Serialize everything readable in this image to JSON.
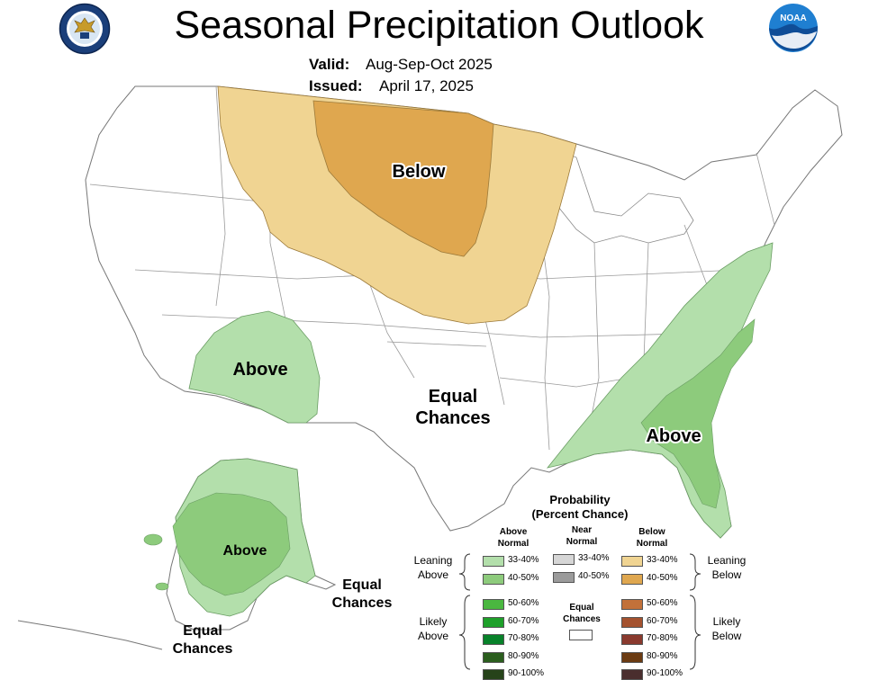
{
  "header": {
    "title": "Seasonal Precipitation Outlook",
    "valid_label": "Valid:",
    "valid_value": "Aug-Sep-Oct 2025",
    "issued_label": "Issued:",
    "issued_value": "April 17, 2025",
    "left_logo": "doc-seal-logo",
    "right_logo": "noaa-logo",
    "right_logo_text": "NOAA"
  },
  "map": {
    "regions": [
      {
        "id": "below-northern-plains",
        "label": "Below",
        "category": "below",
        "colors": [
          "#f0d492",
          "#dfa74f"
        ]
      },
      {
        "id": "above-southwest",
        "label": "Above",
        "category": "above",
        "color": "#b3dfab"
      },
      {
        "id": "above-southeast",
        "label": "Above",
        "category": "above",
        "colors": [
          "#b3dfab",
          "#8dcb7c"
        ]
      },
      {
        "id": "equal-chances-conus",
        "label_line1": "Equal",
        "label_line2": "Chances",
        "category": "equal"
      },
      {
        "id": "above-alaska",
        "label": "Above",
        "category": "above",
        "colors": [
          "#b3dfab",
          "#8dcb7c"
        ]
      },
      {
        "id": "equal-chances-alaska-east",
        "label_line1": "Equal",
        "label_line2": "Chances",
        "category": "equal"
      },
      {
        "id": "equal-chances-alaska-southwest",
        "label_line1": "Equal",
        "label_line2": "Chances",
        "category": "equal"
      }
    ]
  },
  "legend": {
    "title_line1": "Probability",
    "title_line2": "(Percent Chance)",
    "col_above_1": "Above",
    "col_above_2": "Normal",
    "col_near_1": "Near",
    "col_near_2": "Normal",
    "col_below_1": "Below",
    "col_below_2": "Normal",
    "leaning_above_1": "Leaning",
    "leaning_above_2": "Above",
    "likely_above_1": "Likely",
    "likely_above_2": "Above",
    "leaning_below_1": "Leaning",
    "leaning_below_2": "Below",
    "likely_below_1": "Likely",
    "likely_below_2": "Below",
    "equal_1": "Equal",
    "equal_2": "Chances",
    "above": [
      {
        "range": "33-40%",
        "color": "#b3dfab"
      },
      {
        "range": "40-50%",
        "color": "#8dcb7c"
      },
      {
        "range": "50-60%",
        "color": "#4ab740"
      },
      {
        "range": "60-70%",
        "color": "#1ea02a"
      },
      {
        "range": "70-80%",
        "color": "#08822a"
      },
      {
        "range": "80-90%",
        "color": "#2b5e1e"
      },
      {
        "range": "90-100%",
        "color": "#26431a"
      }
    ],
    "near": [
      {
        "range": "33-40%",
        "color": "#d6d6d6"
      },
      {
        "range": "40-50%",
        "color": "#9b9b9b"
      }
    ],
    "below": [
      {
        "range": "33-40%",
        "color": "#f0d492"
      },
      {
        "range": "40-50%",
        "color": "#dfa74f"
      },
      {
        "range": "50-60%",
        "color": "#c2713a"
      },
      {
        "range": "60-70%",
        "color": "#a4522f"
      },
      {
        "range": "70-80%",
        "color": "#8a3a2e"
      },
      {
        "range": "80-90%",
        "color": "#6b3b12"
      },
      {
        "range": "90-100%",
        "color": "#4a2e2e"
      }
    ]
  }
}
